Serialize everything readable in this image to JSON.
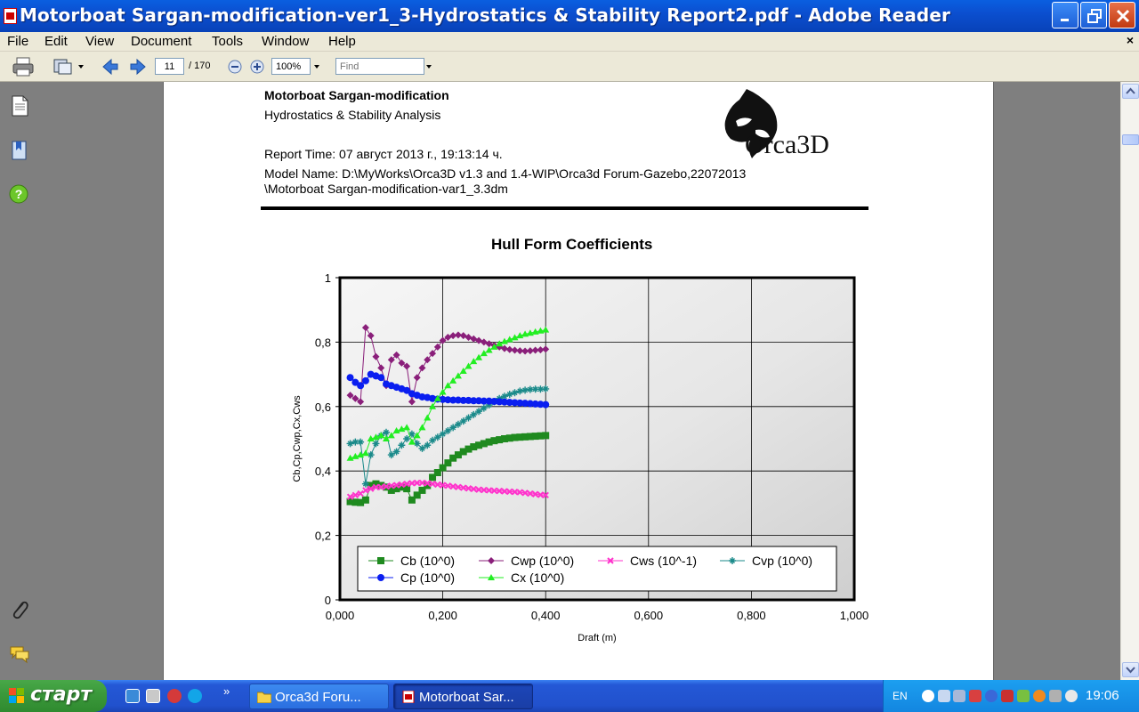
{
  "window": {
    "title": "Motorboat Sargan-modification-ver1_3-Hydrostatics & Stability Report2.pdf - Adobe Reader"
  },
  "menu": {
    "items": [
      "File",
      "Edit",
      "View",
      "Document",
      "Tools",
      "Window",
      "Help"
    ],
    "close_doc": "×"
  },
  "toolbar": {
    "page_number": "11",
    "page_total": "/ 170",
    "zoom": "100%",
    "find_placeholder": "Find"
  },
  "document": {
    "header_title": "Motorboat Sargan-modification",
    "header_subtitle": "Hydrostatics & Stability Analysis",
    "report_time": "Report Time: 07 август 2013 г., 19:13:14 ч.",
    "model_name_line1": "Model Name: D:\\MyWorks\\Orca3D v1.3 and 1.4-WIP\\Orca3d Forum-Gazebo,22072013",
    "model_name_line2": "\\Motorboat Sargan-modification-var1_3.3dm",
    "logo_text": "Orca3D"
  },
  "chart_data": {
    "type": "line",
    "title": "Hull Form Coefficients",
    "xlabel": "Draft (m)",
    "ylabel": "Cb,Cp,Cwp,Cx,Cws",
    "xlim": [
      0,
      1
    ],
    "ylim": [
      0,
      1
    ],
    "xticks": [
      "0,000",
      "0,200",
      "0,400",
      "0,600",
      "0,800",
      "1,000"
    ],
    "yticks": [
      "0",
      "0,2",
      "0,4",
      "0,6",
      "0,8",
      "1"
    ],
    "grid": true,
    "legend_position": "bottom-inside",
    "series": [
      {
        "name": "Cb (10^0)",
        "color": "#1f8a1f",
        "marker": "square",
        "x": [
          0.02,
          0.03,
          0.04,
          0.05,
          0.06,
          0.07,
          0.08,
          0.09,
          0.1,
          0.11,
          0.12,
          0.13,
          0.14,
          0.15,
          0.16,
          0.17,
          0.18,
          0.19,
          0.2,
          0.21,
          0.22,
          0.23,
          0.24,
          0.25,
          0.26,
          0.27,
          0.28,
          0.29,
          0.3,
          0.31,
          0.32,
          0.33,
          0.34,
          0.35,
          0.36,
          0.37,
          0.38,
          0.39,
          0.4
        ],
        "y": [
          0.305,
          0.303,
          0.302,
          0.31,
          0.355,
          0.36,
          0.355,
          0.35,
          0.34,
          0.345,
          0.35,
          0.345,
          0.31,
          0.325,
          0.34,
          0.355,
          0.38,
          0.395,
          0.41,
          0.425,
          0.44,
          0.45,
          0.46,
          0.468,
          0.475,
          0.48,
          0.485,
          0.49,
          0.494,
          0.497,
          0.5,
          0.502,
          0.504,
          0.505,
          0.506,
          0.507,
          0.508,
          0.509,
          0.51
        ]
      },
      {
        "name": "Cwp (10^0)",
        "color": "#8a1f7a",
        "marker": "diamond",
        "x": [
          0.02,
          0.03,
          0.04,
          0.05,
          0.06,
          0.07,
          0.08,
          0.09,
          0.1,
          0.11,
          0.12,
          0.13,
          0.14,
          0.15,
          0.16,
          0.17,
          0.18,
          0.19,
          0.2,
          0.21,
          0.22,
          0.23,
          0.24,
          0.25,
          0.26,
          0.27,
          0.28,
          0.29,
          0.3,
          0.31,
          0.32,
          0.33,
          0.34,
          0.35,
          0.36,
          0.37,
          0.38,
          0.39,
          0.4
        ],
        "y": [
          0.635,
          0.625,
          0.615,
          0.845,
          0.82,
          0.755,
          0.72,
          0.665,
          0.745,
          0.76,
          0.735,
          0.725,
          0.615,
          0.69,
          0.72,
          0.745,
          0.765,
          0.785,
          0.805,
          0.815,
          0.82,
          0.822,
          0.82,
          0.815,
          0.81,
          0.805,
          0.8,
          0.795,
          0.79,
          0.785,
          0.78,
          0.777,
          0.775,
          0.773,
          0.772,
          0.773,
          0.775,
          0.776,
          0.778
        ]
      },
      {
        "name": "Cws (10^-1)",
        "color": "#ff33cc",
        "marker": "x",
        "x": [
          0.02,
          0.03,
          0.04,
          0.05,
          0.06,
          0.07,
          0.08,
          0.09,
          0.1,
          0.11,
          0.12,
          0.13,
          0.14,
          0.15,
          0.16,
          0.17,
          0.18,
          0.19,
          0.2,
          0.21,
          0.22,
          0.23,
          0.24,
          0.25,
          0.26,
          0.27,
          0.28,
          0.29,
          0.3,
          0.31,
          0.32,
          0.33,
          0.34,
          0.35,
          0.36,
          0.37,
          0.38,
          0.39,
          0.4
        ],
        "y": [
          0.32,
          0.325,
          0.33,
          0.34,
          0.345,
          0.35,
          0.35,
          0.352,
          0.354,
          0.356,
          0.358,
          0.36,
          0.362,
          0.363,
          0.363,
          0.362,
          0.36,
          0.358,
          0.356,
          0.354,
          0.352,
          0.35,
          0.348,
          0.346,
          0.344,
          0.342,
          0.341,
          0.34,
          0.339,
          0.338,
          0.337,
          0.336,
          0.335,
          0.334,
          0.332,
          0.33,
          0.328,
          0.326,
          0.325
        ]
      },
      {
        "name": "Cvp (10^0)",
        "color": "#1a8a8a",
        "marker": "star",
        "x": [
          0.02,
          0.03,
          0.04,
          0.05,
          0.06,
          0.07,
          0.08,
          0.09,
          0.1,
          0.11,
          0.12,
          0.13,
          0.14,
          0.15,
          0.16,
          0.17,
          0.18,
          0.19,
          0.2,
          0.21,
          0.22,
          0.23,
          0.24,
          0.25,
          0.26,
          0.27,
          0.28,
          0.29,
          0.3,
          0.31,
          0.32,
          0.33,
          0.34,
          0.35,
          0.36,
          0.37,
          0.38,
          0.39,
          0.4
        ],
        "y": [
          0.485,
          0.49,
          0.49,
          0.36,
          0.45,
          0.485,
          0.51,
          0.52,
          0.45,
          0.46,
          0.48,
          0.5,
          0.515,
          0.485,
          0.47,
          0.48,
          0.495,
          0.505,
          0.515,
          0.525,
          0.535,
          0.545,
          0.555,
          0.565,
          0.575,
          0.585,
          0.595,
          0.605,
          0.615,
          0.625,
          0.632,
          0.638,
          0.643,
          0.648,
          0.651,
          0.653,
          0.654,
          0.654,
          0.655
        ]
      },
      {
        "name": "Cp (10^0)",
        "color": "#0a1ef0",
        "marker": "circle",
        "x": [
          0.02,
          0.03,
          0.04,
          0.05,
          0.06,
          0.07,
          0.08,
          0.09,
          0.1,
          0.11,
          0.12,
          0.13,
          0.14,
          0.15,
          0.16,
          0.17,
          0.18,
          0.19,
          0.2,
          0.21,
          0.22,
          0.23,
          0.24,
          0.25,
          0.26,
          0.27,
          0.28,
          0.29,
          0.3,
          0.31,
          0.32,
          0.33,
          0.34,
          0.35,
          0.36,
          0.37,
          0.38,
          0.39,
          0.4
        ],
        "y": [
          0.69,
          0.675,
          0.665,
          0.68,
          0.7,
          0.695,
          0.69,
          0.67,
          0.665,
          0.66,
          0.655,
          0.65,
          0.64,
          0.635,
          0.63,
          0.628,
          0.625,
          0.623,
          0.622,
          0.621,
          0.62,
          0.62,
          0.619,
          0.619,
          0.618,
          0.618,
          0.617,
          0.617,
          0.616,
          0.615,
          0.614,
          0.613,
          0.612,
          0.611,
          0.61,
          0.609,
          0.608,
          0.607,
          0.606
        ]
      },
      {
        "name": "Cx (10^0)",
        "color": "#22ee22",
        "marker": "triangle",
        "x": [
          0.02,
          0.03,
          0.04,
          0.05,
          0.06,
          0.07,
          0.08,
          0.09,
          0.1,
          0.11,
          0.12,
          0.13,
          0.14,
          0.15,
          0.16,
          0.17,
          0.18,
          0.19,
          0.2,
          0.21,
          0.22,
          0.23,
          0.24,
          0.25,
          0.26,
          0.27,
          0.28,
          0.29,
          0.3,
          0.31,
          0.32,
          0.33,
          0.34,
          0.35,
          0.36,
          0.37,
          0.38,
          0.39,
          0.4
        ],
        "y": [
          0.44,
          0.445,
          0.45,
          0.455,
          0.5,
          0.505,
          0.51,
          0.5,
          0.51,
          0.525,
          0.53,
          0.535,
          0.49,
          0.51,
          0.535,
          0.565,
          0.6,
          0.625,
          0.645,
          0.665,
          0.68,
          0.695,
          0.71,
          0.725,
          0.74,
          0.752,
          0.765,
          0.775,
          0.785,
          0.795,
          0.802,
          0.808,
          0.814,
          0.82,
          0.825,
          0.828,
          0.832,
          0.835,
          0.838
        ]
      }
    ]
  },
  "taskbar": {
    "start_label": "старт",
    "tasks": [
      "Orca3d Foru...",
      "Motorboat Sar..."
    ],
    "lang": "EN",
    "clock": "19:06",
    "more": "»"
  }
}
